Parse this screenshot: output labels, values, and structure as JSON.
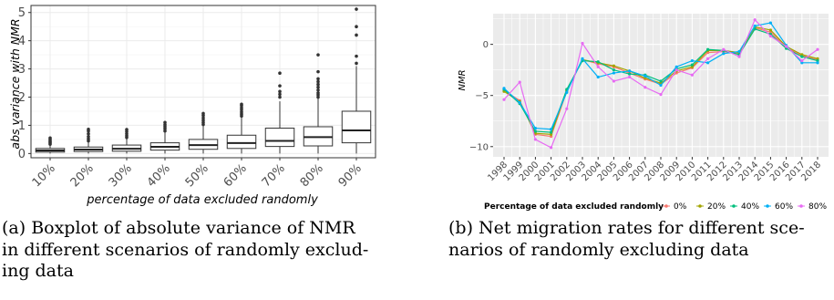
{
  "chart_data": [
    {
      "type": "box",
      "xlabel": "percentage of data excluded randomly",
      "ylabel": "abs variance with NMR",
      "ylim": [
        -0.15,
        5.25
      ],
      "yticks": [
        "0",
        "1",
        "2",
        "3",
        "4",
        "5"
      ],
      "ytick_values": [
        0,
        1,
        2,
        3,
        4,
        5
      ],
      "categories": [
        "10%",
        "20%",
        "30%",
        "40%",
        "50%",
        "60%",
        "70%",
        "80%",
        "90%"
      ],
      "boxes": [
        {
          "q1": 0.05,
          "median": 0.11,
          "q3": 0.18,
          "whisker_low": 0.0,
          "whisker_high": 0.3,
          "outliers": [
            0.33,
            0.37,
            0.41,
            0.45,
            0.5,
            0.55
          ]
        },
        {
          "q1": 0.07,
          "median": 0.14,
          "q3": 0.23,
          "whisker_low": 0.0,
          "whisker_high": 0.4,
          "outliers": [
            0.45,
            0.52,
            0.6,
            0.7,
            0.8,
            0.86
          ]
        },
        {
          "q1": 0.08,
          "median": 0.17,
          "q3": 0.3,
          "whisker_low": 0.0,
          "whisker_high": 0.52,
          "outliers": [
            0.57,
            0.63,
            0.7,
            0.78,
            0.85
          ]
        },
        {
          "q1": 0.12,
          "median": 0.24,
          "q3": 0.38,
          "whisker_low": 0.0,
          "whisker_high": 0.75,
          "outliers": [
            0.8,
            0.88,
            0.95,
            1.02,
            1.1
          ]
        },
        {
          "q1": 0.15,
          "median": 0.3,
          "q3": 0.5,
          "whisker_low": 0.0,
          "whisker_high": 0.98,
          "outliers": [
            1.03,
            1.1,
            1.18,
            1.26,
            1.35,
            1.42
          ]
        },
        {
          "q1": 0.18,
          "median": 0.37,
          "q3": 0.65,
          "whisker_low": 0.0,
          "whisker_high": 1.28,
          "outliers": [
            1.33,
            1.4,
            1.47,
            1.55,
            1.62,
            1.7,
            1.75
          ]
        },
        {
          "q1": 0.25,
          "median": 0.45,
          "q3": 0.9,
          "whisker_low": 0.0,
          "whisker_high": 1.85,
          "outliers": [
            2.0,
            2.1,
            2.2,
            2.4,
            2.85
          ]
        },
        {
          "q1": 0.27,
          "median": 0.58,
          "q3": 0.95,
          "whisker_low": 0.0,
          "whisker_high": 1.95,
          "outliers": [
            2.0,
            2.08,
            2.15,
            2.25,
            2.35,
            2.45,
            2.55,
            2.65,
            2.9,
            3.5
          ]
        },
        {
          "q1": 0.38,
          "median": 0.82,
          "q3": 1.5,
          "whisker_low": 0.0,
          "whisker_high": 3.1,
          "outliers": [
            3.2,
            3.45,
            4.2,
            4.5,
            5.12
          ]
        }
      ]
    },
    {
      "type": "line",
      "xlabel": "",
      "ylabel": "NMR",
      "ylim": [
        -11,
        3
      ],
      "yticks": [
        "0",
        "−5",
        "−10"
      ],
      "ytick_values": [
        0,
        -5,
        -10
      ],
      "x": [
        "1998",
        "1999",
        "2000",
        "2001",
        "2002",
        "2003",
        "2004",
        "2005",
        "2006",
        "2007",
        "2008",
        "2009",
        "2010",
        "2011",
        "2012",
        "2013",
        "2014",
        "2015",
        "2016",
        "2017",
        "2018"
      ],
      "legend_title": "Percentage of data excluded randomly",
      "legend_position": "bottom",
      "series": [
        {
          "name": "0%",
          "color": "#f8766d",
          "values": [
            -4.5,
            -5.5,
            -8.8,
            -9.0,
            -4.6,
            -1.5,
            -1.9,
            -2.2,
            -2.8,
            -3.4,
            -3.9,
            -2.8,
            -2.3,
            -0.8,
            -0.7,
            -0.9,
            1.6,
            1.2,
            -0.3,
            -1.1,
            -1.5
          ]
        },
        {
          "name": "20%",
          "color": "#a3a500",
          "values": [
            -4.6,
            -5.6,
            -8.7,
            -8.8,
            -4.5,
            -1.5,
            -1.8,
            -2.1,
            -2.6,
            -3.3,
            -3.8,
            -2.6,
            -2.2,
            -0.6,
            -0.6,
            -0.8,
            1.7,
            1.4,
            -0.2,
            -1.0,
            -1.4
          ]
        },
        {
          "name": "40%",
          "color": "#00bf7d",
          "values": [
            -4.4,
            -5.8,
            -8.5,
            -8.6,
            -4.4,
            -1.6,
            -1.7,
            -2.5,
            -2.9,
            -3.0,
            -3.6,
            -2.4,
            -2.0,
            -0.5,
            -0.6,
            -1.0,
            1.5,
            1.0,
            -0.4,
            -1.2,
            -1.6
          ]
        },
        {
          "name": "60%",
          "color": "#00b0f6",
          "values": [
            -4.3,
            -5.7,
            -8.2,
            -8.3,
            -4.7,
            -1.4,
            -3.2,
            -2.8,
            -2.6,
            -3.1,
            -4.0,
            -2.2,
            -1.6,
            -1.8,
            -0.9,
            -0.7,
            1.8,
            2.1,
            -0.1,
            -1.8,
            -1.8
          ]
        },
        {
          "name": "80%",
          "color": "#e76bf3",
          "values": [
            -5.4,
            -3.7,
            -9.3,
            -10.1,
            -6.3,
            0.1,
            -2.2,
            -3.6,
            -3.2,
            -4.2,
            -4.9,
            -2.5,
            -3.0,
            -1.4,
            -0.5,
            -1.2,
            2.4,
            0.8,
            -0.2,
            -1.6,
            -0.5
          ]
        }
      ]
    }
  ],
  "captions": {
    "a_lines": [
      "(a) Boxplot of absolute variance of NMR",
      "in different scenarios of randomly exclud-",
      "ing data"
    ],
    "b_lines": [
      "(b) Net migration rates for different sce-",
      "narios of randomly excluding data"
    ]
  }
}
